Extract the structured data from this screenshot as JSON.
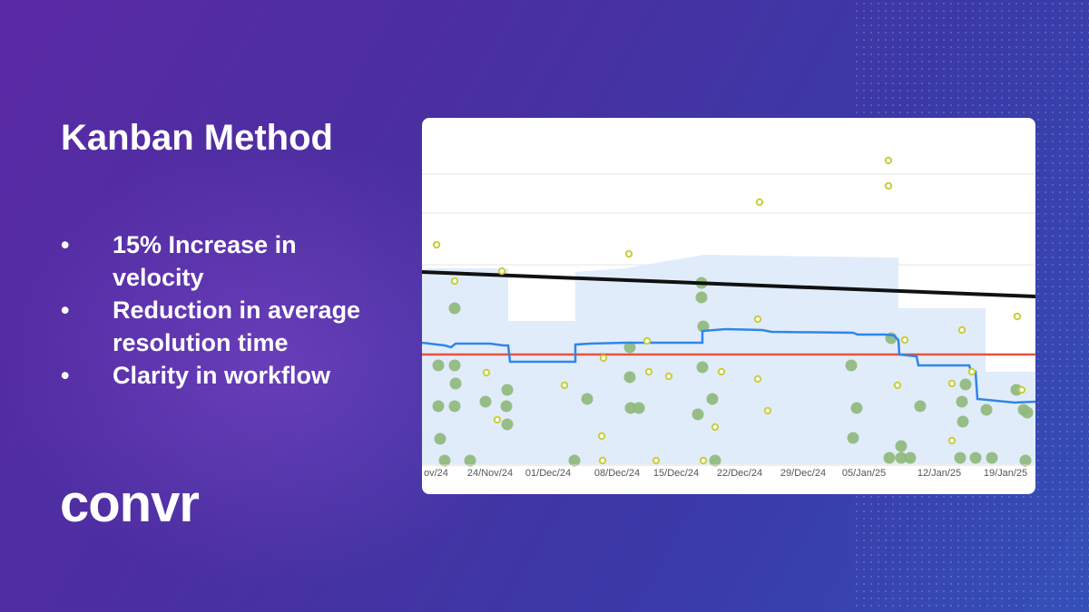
{
  "slide": {
    "title": "Kanban Method",
    "bullets": [
      {
        "marker": "•",
        "text": "15% Increase in velocity"
      },
      {
        "marker": "•",
        "text": "Reduction in average resolution time"
      },
      {
        "marker": "•",
        "text": "Clarity in workflow"
      }
    ],
    "logo_text": "convr"
  },
  "chart": {
    "x_tick_labels": [
      "ov/24",
      "24/Nov/24",
      "01/Dec/24",
      "08/Dec/24",
      "15/Dec/24",
      "22/Dec/24",
      "29/Dec/24",
      "05/Jan/25",
      "12/Jan/25",
      "19/Jan/25"
    ],
    "colors": {
      "band": "#e1ecfb",
      "rolling_average": "#2f86e8",
      "average": "#e2553f",
      "trend": "#111111",
      "issue_filled": "#8fb87a",
      "issue_hollow": "#c8cf3a"
    }
  }
}
